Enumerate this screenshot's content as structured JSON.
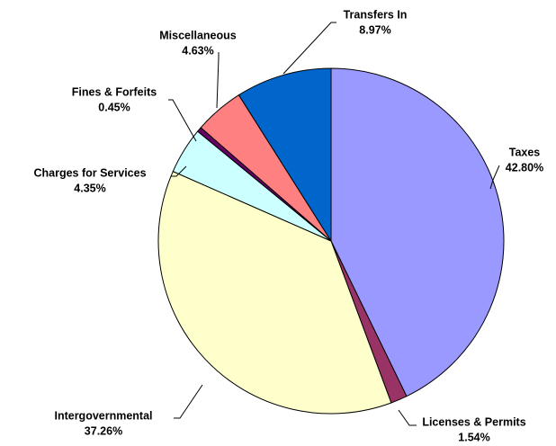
{
  "chart_data": {
    "type": "pie",
    "categories": [
      "Taxes",
      "Licenses & Permits",
      "Intergovernmental",
      "Charges for Services",
      "Fines & Forfeits",
      "Miscellaneous",
      "Transfers In"
    ],
    "values": [
      42.8,
      1.54,
      37.26,
      4.35,
      0.45,
      4.63,
      8.97
    ],
    "value_labels": [
      "42.80%",
      "1.54%",
      "37.26%",
      "4.35%",
      "0.45%",
      "4.63%",
      "8.97%"
    ],
    "colors": [
      "#9999ff",
      "#993366",
      "#ffffcc",
      "#ccffff",
      "#660066",
      "#ff8080",
      "#0066cc"
    ]
  }
}
